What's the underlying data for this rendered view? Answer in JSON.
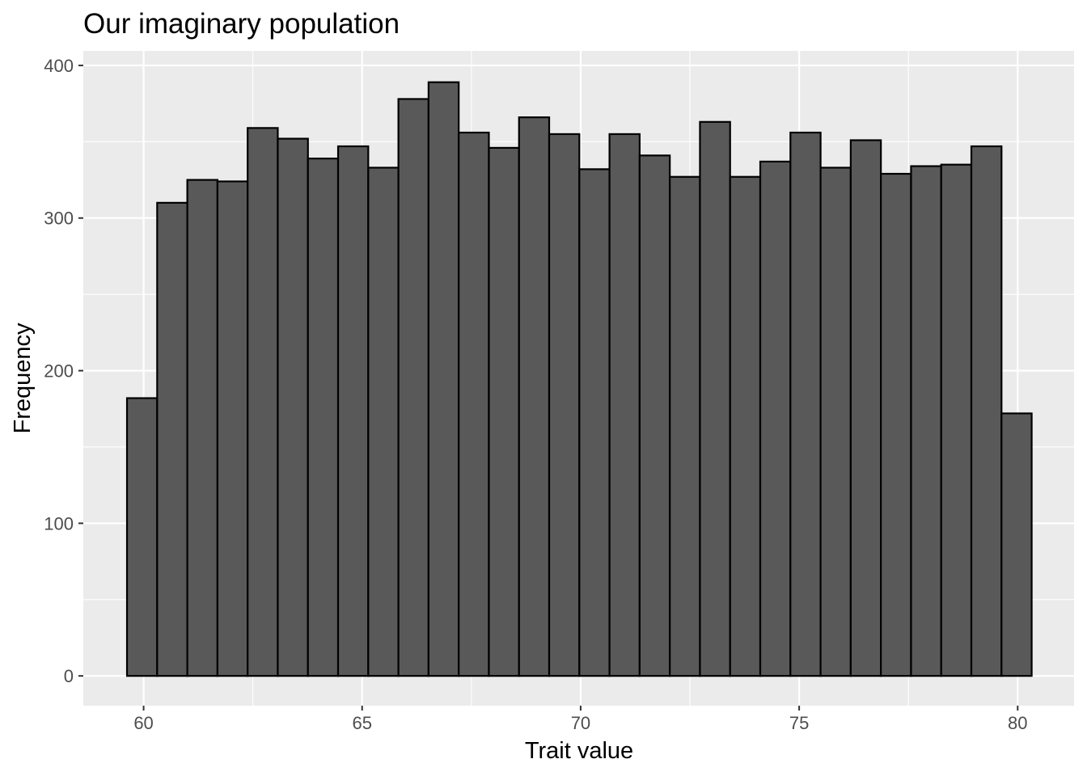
{
  "chart_data": {
    "type": "bar",
    "title": "Our imaginary population",
    "xlabel": "Trait value",
    "ylabel": "Frequency",
    "xlim": [
      58.62,
      81.29
    ],
    "ylim": [
      -19.5,
      409.5
    ],
    "x_ticks": [
      60,
      65,
      70,
      75,
      80
    ],
    "y_ticks": [
      0,
      100,
      200,
      300,
      400
    ],
    "x_minor": [
      62.5,
      67.5,
      72.5,
      77.5
    ],
    "y_minor": [
      50,
      150,
      250,
      350
    ],
    "grid": true,
    "colors": {
      "panel": "#ebebeb",
      "grid": "#ffffff",
      "bar_fill": "#595959",
      "bar_stroke": "#000000"
    },
    "bins": [
      {
        "x0": 59.62,
        "x1": 60.31,
        "count": 182
      },
      {
        "x0": 60.31,
        "x1": 61.0,
        "count": 310
      },
      {
        "x0": 61.0,
        "x1": 61.69,
        "count": 325
      },
      {
        "x0": 61.69,
        "x1": 62.38,
        "count": 324
      },
      {
        "x0": 62.38,
        "x1": 63.07,
        "count": 359
      },
      {
        "x0": 63.07,
        "x1": 63.76,
        "count": 352
      },
      {
        "x0": 63.76,
        "x1": 64.45,
        "count": 339
      },
      {
        "x0": 64.45,
        "x1": 65.14,
        "count": 347
      },
      {
        "x0": 65.14,
        "x1": 65.83,
        "count": 333
      },
      {
        "x0": 65.83,
        "x1": 66.52,
        "count": 378
      },
      {
        "x0": 66.52,
        "x1": 67.21,
        "count": 389
      },
      {
        "x0": 67.21,
        "x1": 67.9,
        "count": 356
      },
      {
        "x0": 67.9,
        "x1": 68.59,
        "count": 346
      },
      {
        "x0": 68.59,
        "x1": 69.28,
        "count": 366
      },
      {
        "x0": 69.28,
        "x1": 69.97,
        "count": 355
      },
      {
        "x0": 69.97,
        "x1": 70.66,
        "count": 332
      },
      {
        "x0": 70.66,
        "x1": 71.35,
        "count": 355
      },
      {
        "x0": 71.35,
        "x1": 72.04,
        "count": 341
      },
      {
        "x0": 72.04,
        "x1": 72.73,
        "count": 327
      },
      {
        "x0": 72.73,
        "x1": 73.42,
        "count": 363
      },
      {
        "x0": 73.42,
        "x1": 74.11,
        "count": 327
      },
      {
        "x0": 74.11,
        "x1": 74.8,
        "count": 337
      },
      {
        "x0": 74.8,
        "x1": 75.49,
        "count": 356
      },
      {
        "x0": 75.49,
        "x1": 76.18,
        "count": 333
      },
      {
        "x0": 76.18,
        "x1": 76.87,
        "count": 351
      },
      {
        "x0": 76.87,
        "x1": 77.56,
        "count": 329
      },
      {
        "x0": 77.56,
        "x1": 78.25,
        "count": 334
      },
      {
        "x0": 78.25,
        "x1": 78.94,
        "count": 335
      },
      {
        "x0": 78.94,
        "x1": 79.63,
        "count": 347
      },
      {
        "x0": 79.63,
        "x1": 80.32,
        "count": 172
      }
    ]
  }
}
